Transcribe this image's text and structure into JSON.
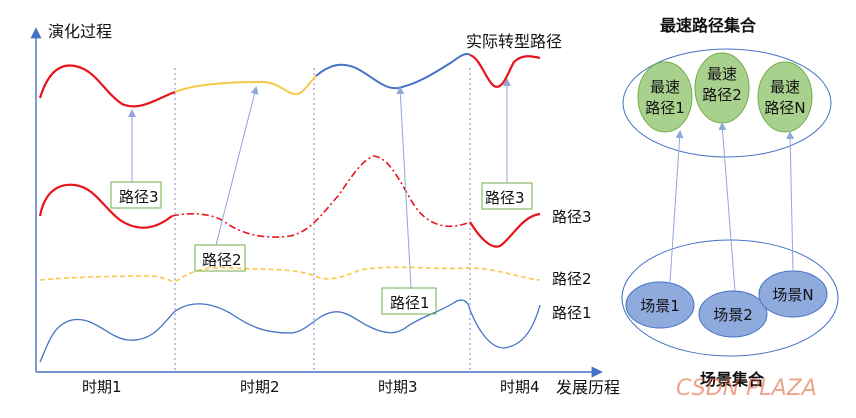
{
  "axis": {
    "y_label": "演化过程",
    "x_label": "发展历程",
    "periods": [
      "时期1",
      "时期2",
      "时期3",
      "时期4"
    ]
  },
  "curves": {
    "actual_label": "实际转型路径",
    "path3_label": "路径3",
    "path2_label": "路径2",
    "path1_label": "路径1"
  },
  "boxes": {
    "box_period1": "路径3",
    "box_period2": "路径2",
    "box_period3": "路径1",
    "box_period4": "路径3"
  },
  "fastest_set": {
    "title": "最速路径集合",
    "items": [
      {
        "line1": "最速",
        "line2": "路径1"
      },
      {
        "line1": "最速",
        "line2": "路径2"
      },
      {
        "line1": "最速",
        "line2": "路径N"
      }
    ]
  },
  "scenario_set": {
    "title": "场景集合",
    "items": [
      "场景1",
      "场景2",
      "场景N"
    ]
  },
  "watermark": "CSDN PLAZA",
  "colors": {
    "red": "#e8141b",
    "yellow": "#f7c948",
    "blue": "#4472c4",
    "green_fill": "#a9d18e",
    "green_stroke": "#70ad47",
    "blue_fill": "#8faadc"
  }
}
